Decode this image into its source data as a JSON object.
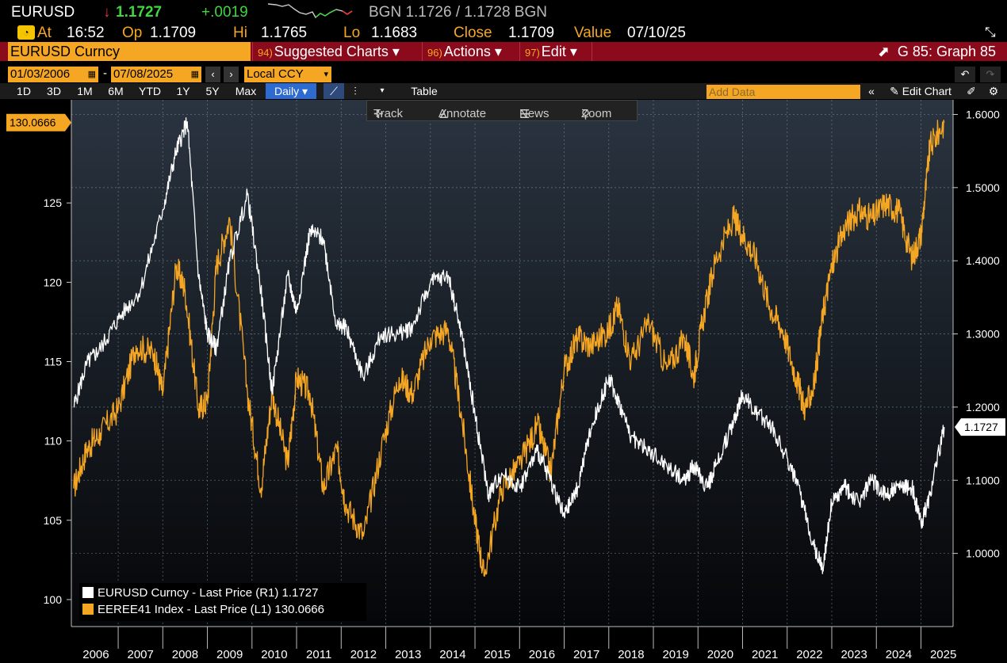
{
  "header": {
    "ticker": "EURUSD",
    "arrow": "↓",
    "last": "1.1727",
    "change": "+.0019",
    "bidask": "BGN 1.1726 / 1.1728 BGN"
  },
  "stats": {
    "at_label": "At",
    "at_value": "16:52",
    "op_label": "Op",
    "op_value": "1.1709",
    "hi_label": "Hi",
    "hi_value": "1.1765",
    "lo_label": "Lo",
    "lo_value": "1.1683",
    "close_label": "Close",
    "close_value": "1.1709",
    "value_label": "Value",
    "value_value": "07/10/25"
  },
  "titlebar": {
    "security": "EURUSD Curncy",
    "menu1_num": "94)",
    "menu1": "Suggested Charts ▾",
    "menu2_num": "96)",
    "menu2": "Actions ▾",
    "menu3_num": "97)",
    "menu3": "Edit ▾",
    "graph": "G 85: Graph 85"
  },
  "dates": {
    "start": "01/03/2006",
    "end": "07/08/2025",
    "currency": "Local CCY"
  },
  "periods": [
    "1D",
    "3D",
    "1M",
    "6M",
    "YTD",
    "1Y",
    "5Y",
    "Max"
  ],
  "frequency": "Daily ▾",
  "table_label": "Table",
  "add_data_placeholder": "Add Data",
  "edit_chart": "Edit Chart",
  "tools": {
    "track": "Track",
    "annotate": "Annotate",
    "news": "News",
    "zoom": "Zoom"
  },
  "colors": {
    "eurusd": "#ffffff",
    "eeree41": "#f5a623",
    "background": "#000000",
    "accent_bar": "#8b0a1c"
  },
  "chart_data": {
    "type": "line",
    "x_ticks": [
      "2006",
      "2007",
      "2008",
      "2009",
      "2010",
      "2011",
      "2012",
      "2013",
      "2014",
      "2015",
      "2016",
      "2017",
      "2018",
      "2019",
      "2020",
      "2021",
      "2022",
      "2023",
      "2024",
      "2025"
    ],
    "left_axis": {
      "ticks": [
        100,
        105,
        110,
        115,
        120,
        125
      ],
      "range": [
        98.3,
        131.5
      ]
    },
    "right_axis": {
      "ticks": [
        "1.0000",
        "1.1000",
        "1.2000",
        "1.3000",
        "1.4000",
        "1.5000",
        "1.6000"
      ],
      "range": [
        0.9,
        1.62
      ]
    },
    "last_left": "130.0666",
    "last_right": "1.1727",
    "grid": true,
    "legend_position": "bottom-left",
    "series": [
      {
        "name": "EURUSD Curncy - Last Price (R1) 1.1727",
        "axis": "right",
        "x": [
          2006.0,
          2006.3,
          2006.6,
          2007.0,
          2007.5,
          2008.0,
          2008.3,
          2008.55,
          2008.8,
          2009.0,
          2009.2,
          2009.5,
          2009.9,
          2010.2,
          2010.45,
          2010.8,
          2011.0,
          2011.3,
          2011.6,
          2011.9,
          2012.1,
          2012.5,
          2012.9,
          2013.3,
          2013.6,
          2014.0,
          2014.4,
          2014.7,
          2015.0,
          2015.3,
          2015.6,
          2016.0,
          2016.4,
          2016.7,
          2017.0,
          2017.3,
          2017.6,
          2018.0,
          2018.2,
          2018.5,
          2018.9,
          2019.3,
          2019.7,
          2019.9,
          2020.2,
          2020.4,
          2020.8,
          2021.0,
          2021.3,
          2021.6,
          2022.0,
          2022.3,
          2022.6,
          2022.8,
          2023.0,
          2023.3,
          2023.6,
          2023.9,
          2024.2,
          2024.5,
          2024.8,
          2025.0,
          2025.2,
          2025.52
        ],
        "y": [
          1.2,
          1.26,
          1.28,
          1.32,
          1.36,
          1.47,
          1.55,
          1.59,
          1.38,
          1.3,
          1.28,
          1.4,
          1.49,
          1.36,
          1.22,
          1.38,
          1.33,
          1.44,
          1.43,
          1.31,
          1.31,
          1.24,
          1.3,
          1.3,
          1.31,
          1.37,
          1.38,
          1.3,
          1.19,
          1.08,
          1.11,
          1.09,
          1.14,
          1.1,
          1.05,
          1.09,
          1.17,
          1.24,
          1.21,
          1.16,
          1.14,
          1.12,
          1.1,
          1.12,
          1.09,
          1.12,
          1.18,
          1.22,
          1.19,
          1.18,
          1.13,
          1.08,
          1.01,
          0.98,
          1.07,
          1.09,
          1.07,
          1.1,
          1.08,
          1.09,
          1.09,
          1.04,
          1.08,
          1.1727
        ]
      },
      {
        "name": "EEREE41 Index - Last Price (L1) 130.0666",
        "axis": "left",
        "x": [
          2006.0,
          2006.3,
          2006.6,
          2007.0,
          2007.4,
          2007.8,
          2008.0,
          2008.3,
          2008.5,
          2008.8,
          2009.0,
          2009.2,
          2009.5,
          2009.9,
          2010.2,
          2010.45,
          2010.8,
          2011.0,
          2011.3,
          2011.6,
          2011.9,
          2012.1,
          2012.5,
          2012.9,
          2013.3,
          2013.6,
          2014.0,
          2014.4,
          2014.7,
          2015.0,
          2015.2,
          2015.6,
          2016.0,
          2016.4,
          2016.7,
          2017.0,
          2017.3,
          2017.6,
          2018.0,
          2018.2,
          2018.5,
          2018.9,
          2019.3,
          2019.7,
          2019.9,
          2020.1,
          2020.4,
          2020.8,
          2021.0,
          2021.3,
          2021.6,
          2021.9,
          2022.2,
          2022.4,
          2022.6,
          2022.8,
          2023.0,
          2023.3,
          2023.6,
          2023.9,
          2024.2,
          2024.5,
          2024.8,
          2025.0,
          2025.2,
          2025.52
        ],
        "y": [
          107.0,
          109.5,
          110.5,
          112.0,
          116.0,
          115.5,
          113.0,
          121.0,
          119.5,
          112.0,
          112.5,
          121.0,
          124.0,
          113.0,
          107.0,
          113.0,
          108.5,
          114.0,
          113.0,
          107.0,
          109.5,
          106.0,
          104.0,
          109.5,
          114.0,
          113.0,
          116.5,
          117.0,
          111.5,
          105.0,
          101.5,
          107.0,
          108.5,
          111.0,
          108.0,
          114.5,
          116.5,
          116.0,
          117.0,
          118.5,
          115.0,
          117.5,
          114.5,
          116.5,
          114.0,
          117.5,
          121.5,
          124.0,
          123.0,
          121.5,
          118.5,
          117.0,
          114.0,
          112.0,
          113.5,
          118.0,
          121.0,
          123.5,
          124.5,
          124.0,
          125.0,
          124.5,
          121.5,
          123.0,
          128.5,
          130.0666
        ]
      }
    ]
  }
}
